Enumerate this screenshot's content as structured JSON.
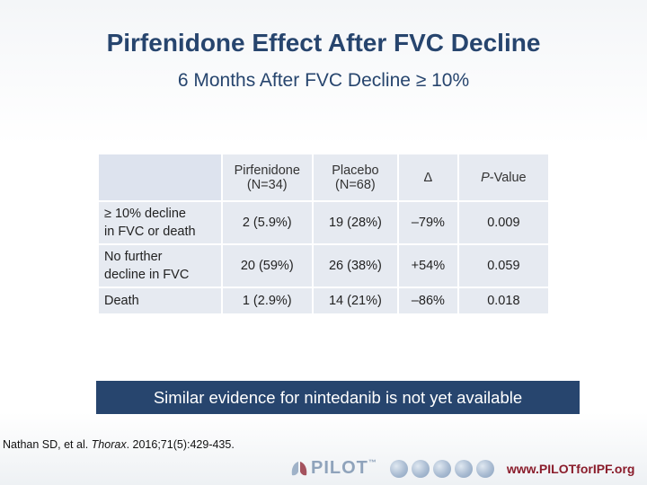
{
  "slide": {
    "title": "Pirfenidone Effect After FVC Decline",
    "subtitle": "6 Months After FVC Decline ≥ 10%"
  },
  "table": {
    "headers": {
      "pirfenidone_name": "Pirfenidone",
      "pirfenidone_n": "(N=34)",
      "placebo_name": "Placebo",
      "placebo_n": "(N=68)",
      "delta": "Δ",
      "pvalue_p": "P",
      "pvalue_rest": "-Value"
    },
    "rows": [
      {
        "label_line1": "≥ 10% decline",
        "label_line2": "in FVC or death",
        "pirfenidone": "2 (5.9%)",
        "placebo": "19 (28%)",
        "delta": "–79%",
        "p_value": "0.009"
      },
      {
        "label_line1": "No further",
        "label_line2": "decline in FVC",
        "pirfenidone": "20 (59%)",
        "placebo": "26 (38%)",
        "delta": "+54%",
        "p_value": "0.059"
      },
      {
        "label_line1": "Death",
        "label_line2": "",
        "pirfenidone": "1 (2.9%)",
        "placebo": "14 (21%)",
        "delta": "–86%",
        "p_value": "0.018"
      }
    ]
  },
  "banner": "Similar evidence for nintedanib is not yet available",
  "citation": {
    "authors": "Nathan SD, et al. ",
    "journal": "Thorax",
    "details": ". 2016;71(5):429-435."
  },
  "footer": {
    "logo_text": "PILOT",
    "trademark": "™",
    "url": "www.PILOTforIPF.org"
  },
  "colors": {
    "title": "#27456e",
    "banner_bg": "#27456e",
    "table_cell": "#e6eaf1",
    "url": "#8a1c2b"
  }
}
